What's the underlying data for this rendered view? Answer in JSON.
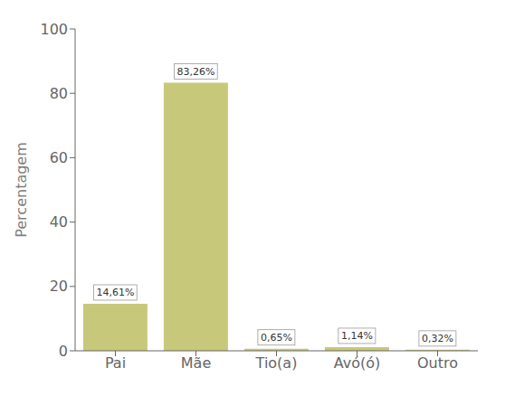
{
  "chart_data": {
    "type": "bar",
    "categories": [
      "Pai",
      "Mãe",
      "Tio(a)",
      "Avó(ó)",
      "Outro"
    ],
    "values": [
      14.61,
      83.26,
      0.65,
      1.14,
      0.32
    ],
    "value_labels": [
      "14,61%",
      "83,26%",
      "0,65%",
      "1,14%",
      "0,32%"
    ],
    "data_labels": true,
    "color": "#c8c87a",
    "ylabel": "Percentagem",
    "ylim": [
      0,
      100
    ],
    "yticks": [
      0,
      20,
      40,
      60,
      80,
      100
    ],
    "grid": false
  }
}
